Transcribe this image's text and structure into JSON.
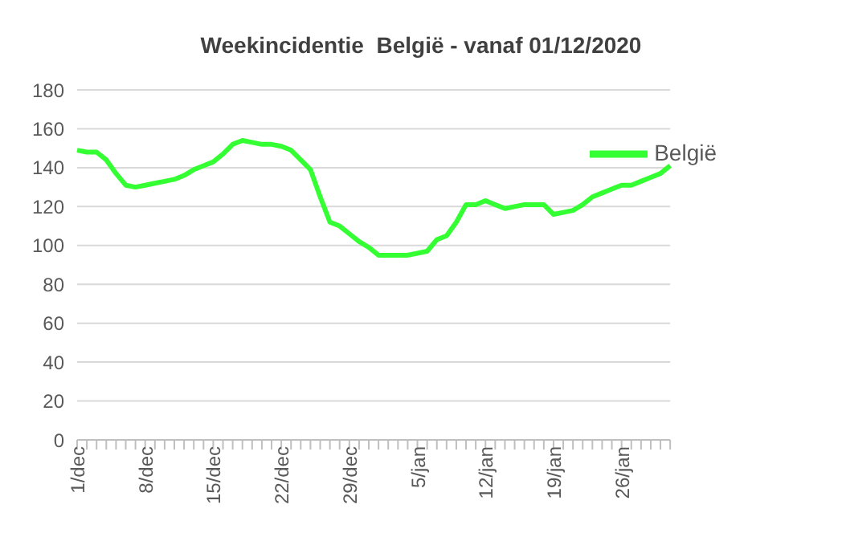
{
  "chart_data": {
    "type": "line",
    "title": "Weekincidentie  België - vanaf 01/12/2020",
    "categories": [
      "1/dec",
      null,
      null,
      null,
      null,
      null,
      null,
      "8/dec",
      null,
      null,
      null,
      null,
      null,
      null,
      "15/dec",
      null,
      null,
      null,
      null,
      null,
      null,
      "22/dec",
      null,
      null,
      null,
      null,
      null,
      null,
      "29/dec",
      null,
      null,
      null,
      null,
      null,
      null,
      "5/jan",
      null,
      null,
      null,
      null,
      null,
      null,
      "12/jan",
      null,
      null,
      null,
      null,
      null,
      null,
      "19/jan",
      null,
      null,
      null,
      null,
      null,
      null,
      "26/jan",
      null,
      null,
      null,
      null,
      null
    ],
    "series": [
      {
        "name": "België",
        "color": "#33ff33",
        "values": [
          149,
          148,
          148,
          144,
          137,
          131,
          130,
          131,
          132,
          133,
          134,
          136,
          139,
          141,
          143,
          147,
          152,
          154,
          153,
          152,
          152,
          151,
          149,
          144,
          139,
          125,
          112,
          110,
          106,
          102,
          99,
          95,
          95,
          95,
          95,
          96,
          97,
          103,
          105,
          112,
          121,
          121,
          123,
          121,
          119,
          120,
          121,
          121,
          121,
          116,
          117,
          118,
          121,
          125,
          127,
          129,
          131,
          131,
          133,
          135,
          137,
          141
        ]
      }
    ],
    "ylim": [
      0,
      180
    ],
    "yticks": [
      0,
      20,
      40,
      60,
      80,
      100,
      120,
      140,
      160,
      180
    ],
    "grid": "y",
    "legend": "top right",
    "marker": "none",
    "line_style": "solid"
  }
}
